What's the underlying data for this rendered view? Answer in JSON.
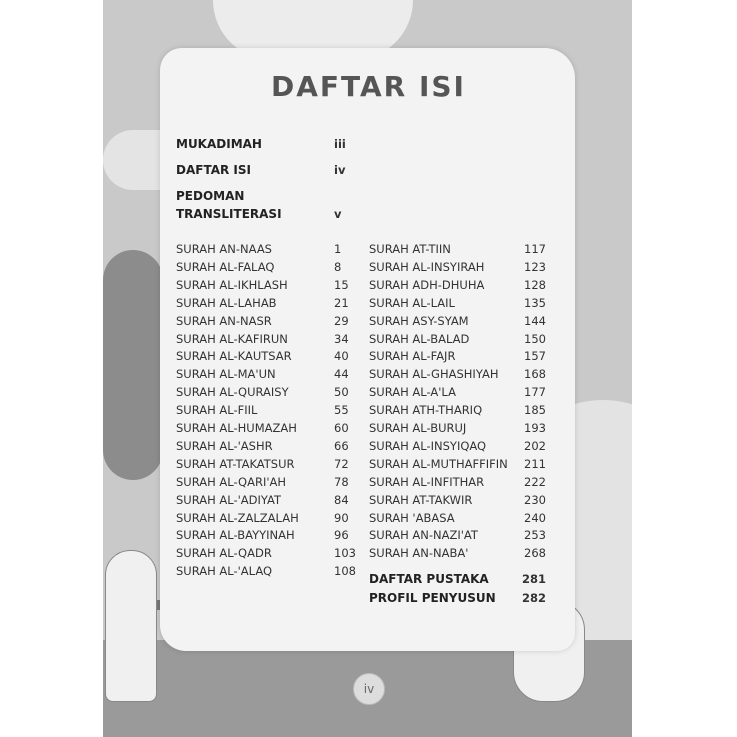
{
  "title": "DAFTAR ISI",
  "front_matter": [
    {
      "label": "MUKADIMAH",
      "page": "iii"
    },
    {
      "label": "DAFTAR ISI",
      "page": "iv"
    },
    {
      "label": "PEDOMAN TRANSLITERASI",
      "label_line1": "PEDOMAN",
      "label_line2": "TRANSLITERASI",
      "page": "v"
    }
  ],
  "left_column": [
    {
      "label": "SURAH AN-NAAS",
      "page": "1"
    },
    {
      "label": "SURAH AL-FALAQ",
      "page": "8"
    },
    {
      "label": "SURAH AL-IKHLASH",
      "page": "15"
    },
    {
      "label": "SURAH AL-LAHAB",
      "page": "21"
    },
    {
      "label": "SURAH AN-NASR",
      "page": "29"
    },
    {
      "label": "SURAH AL-KAFIRUN",
      "page": "34"
    },
    {
      "label": "SURAH AL-KAUTSAR",
      "page": "40"
    },
    {
      "label": "SURAH AL-MA'UN",
      "page": "44"
    },
    {
      "label": "SURAH AL-QURAISY",
      "page": "50"
    },
    {
      "label": "SURAH AL-FIIL",
      "page": "55"
    },
    {
      "label": "SURAH AL-HUMAZAH",
      "page": "60"
    },
    {
      "label": "SURAH AL-'ASHR",
      "page": "66"
    },
    {
      "label": "SURAH AT-TAKATSUR",
      "page": "72"
    },
    {
      "label": "SURAH AL-QARI'AH",
      "page": "78"
    },
    {
      "label": "SURAH AL-'ADIYAT",
      "page": "84"
    },
    {
      "label": "SURAH AL-ZALZALAH",
      "page": "90"
    },
    {
      "label": "SURAH AL-BAYYINAH",
      "page": "96"
    },
    {
      "label": "SURAH AL-QADR",
      "page": "103"
    },
    {
      "label": "SURAH AL-'ALAQ",
      "page": "108"
    }
  ],
  "right_column": [
    {
      "label": "SURAH AT-TIIN",
      "page": "117"
    },
    {
      "label": "SURAH AL-INSYIRAH",
      "page": "123"
    },
    {
      "label": "SURAH ADH-DHUHA",
      "page": "128"
    },
    {
      "label": "SURAH AL-LAIL",
      "page": "135"
    },
    {
      "label": "SURAH ASY-SYAM",
      "page": "144"
    },
    {
      "label": "SURAH AL-BALAD",
      "page": "150"
    },
    {
      "label": "SURAH AL-FAJR",
      "page": "157"
    },
    {
      "label": "SURAH AL-GHASHIYAH",
      "page": "168"
    },
    {
      "label": "SURAH AL-A'LA",
      "page": "177"
    },
    {
      "label": "SURAH ATH-THARIQ",
      "page": "185"
    },
    {
      "label": "SURAH AL-BURUJ",
      "page": "193"
    },
    {
      "label": "SURAH AL-INSYIQAQ",
      "page": "202"
    },
    {
      "label": "SURAH AL-MUTHAFFIFIN",
      "page": "211"
    },
    {
      "label": "SURAH AL-INFITHAR",
      "page": "222"
    },
    {
      "label": "SURAH AT-TAKWIR",
      "page": "230"
    },
    {
      "label": "SURAH 'ABASA",
      "page": "240"
    },
    {
      "label": "SURAH AN-NAZI'AT",
      "page": "253"
    },
    {
      "label": "SURAH AN-NABA'",
      "page": "268"
    }
  ],
  "back_matter": [
    {
      "label": "DAFTAR PUSTAKA",
      "page": "281"
    },
    {
      "label": "PROFIL PENYUSUN",
      "page": "282"
    }
  ],
  "page_number": "iv"
}
